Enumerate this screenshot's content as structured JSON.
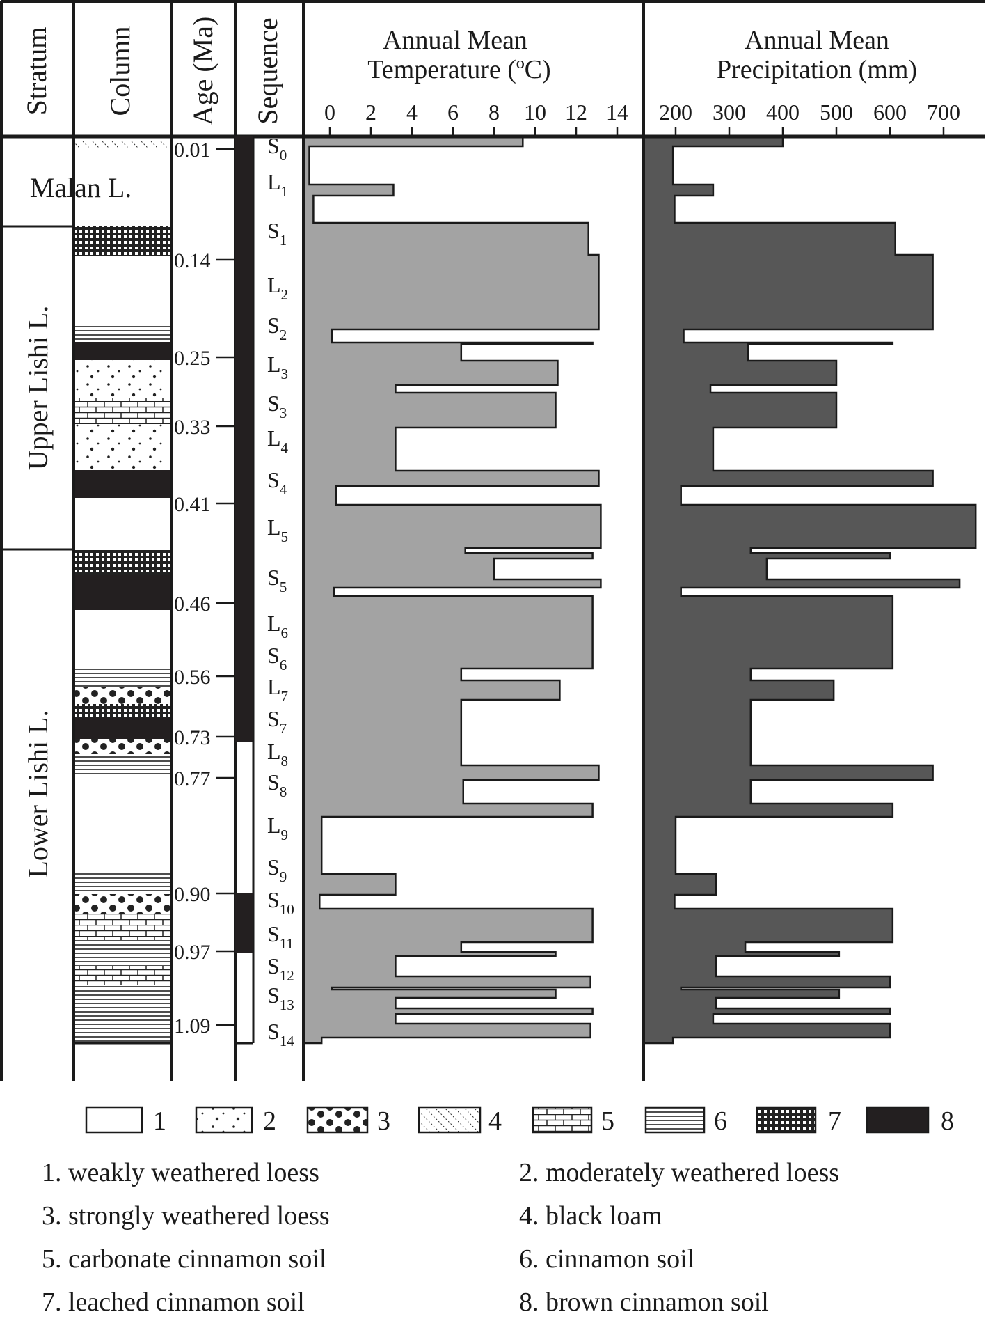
{
  "headers": {
    "stratum": "Stratum",
    "column": "Column",
    "age": "Age (Ma)",
    "sequence": "Sequence",
    "temperature": [
      "Annual Mean",
      "Temperature (ºC)"
    ],
    "precipitation": [
      "Annual Mean",
      "Precipitation (mm)"
    ]
  },
  "temp_ticks": [
    "0",
    "2",
    "4",
    "6",
    "8",
    "10",
    "12",
    "14"
  ],
  "prec_ticks": [
    "200",
    "300",
    "400",
    "500",
    "600",
    "700"
  ],
  "ages": [
    "0.01",
    "0.14",
    "0.25",
    "0.33",
    "0.41",
    "0.46",
    "0.56",
    "0.73",
    "0.77",
    "0.90",
    "0.97",
    "1.09"
  ],
  "strata": [
    "Malan L.",
    "Upper Lishi L.",
    "Lower Lishi L."
  ],
  "sequence": [
    {
      "l": "S",
      "s": "0"
    },
    {
      "l": "L",
      "s": "1"
    },
    {
      "l": "S",
      "s": "1"
    },
    {
      "l": "L",
      "s": "2"
    },
    {
      "l": "S",
      "s": "2"
    },
    {
      "l": "L",
      "s": "3"
    },
    {
      "l": "S",
      "s": "3"
    },
    {
      "l": "L",
      "s": "4"
    },
    {
      "l": "S",
      "s": "4"
    },
    {
      "l": "L",
      "s": "5"
    },
    {
      "l": "S",
      "s": "5"
    },
    {
      "l": "L",
      "s": "6"
    },
    {
      "l": "S",
      "s": "6"
    },
    {
      "l": "L",
      "s": "7"
    },
    {
      "l": "S",
      "s": "7"
    },
    {
      "l": "L",
      "s": "8"
    },
    {
      "l": "S",
      "s": "8"
    },
    {
      "l": "L",
      "s": "9"
    },
    {
      "l": "S",
      "s": "9"
    },
    {
      "l": "S",
      "s": "10"
    },
    {
      "l": "S",
      "s": "11"
    },
    {
      "l": "S",
      "s": "12"
    },
    {
      "l": "S",
      "s": "13"
    },
    {
      "l": "S",
      "s": "14"
    }
  ],
  "legend": {
    "numbers": [
      "1",
      "2",
      "3",
      "4",
      "5",
      "6",
      "7",
      "8"
    ],
    "descriptions": [
      "1. weakly weathered loess",
      "2. moderately weathered loess",
      "3. strongly weathered loess",
      "4. black loam",
      "5. carbonate cinnamon soil",
      "6. cinnamon soil",
      "7. leached cinnamon soil",
      "8. brown cinnamon soil"
    ]
  },
  "colors": {
    "temperature_fill": "#a3a3a3",
    "precipitation_fill": "#575757",
    "line": "#1a1a1a"
  },
  "chart_data": [
    {
      "type": "area",
      "title": "Annual Mean Temperature (ºC)",
      "xlabel": "Annual Mean Temperature (ºC)",
      "ylabel": "Sequence",
      "xlim": [
        -2,
        15.5
      ],
      "grid": false,
      "series": [
        {
          "name": "Annual Mean Temperature",
          "values": [
            9.4,
            -1.0,
            3.1,
            -0.8,
            12.6,
            13.1,
            0.1,
            12.8,
            6.4,
            11.1,
            3.2,
            11.0,
            3.2,
            13.1,
            0.3,
            13.2,
            6.6,
            12.8,
            8.0,
            13.2,
            0.2,
            12.8,
            6.4,
            11.2,
            6.4,
            13.1,
            6.5,
            12.8,
            -0.4,
            3.2,
            -0.5,
            12.8,
            6.4,
            11.0,
            3.2,
            12.7,
            0.1,
            11.0,
            3.2,
            12.8,
            3.2,
            12.7,
            -0.4
          ]
        }
      ]
    },
    {
      "type": "area",
      "title": "Annual Mean Precipitation (mm)",
      "xlabel": "Annual Mean Precipitation (mm)",
      "ylabel": "Sequence",
      "xlim": [
        150,
        780
      ],
      "grid": false,
      "series": [
        {
          "name": "Annual Mean Precipitation",
          "values": [
            400,
            195,
            270,
            198,
            610,
            680,
            215,
            605,
            335,
            500,
            265,
            500,
            270,
            680,
            210,
            760,
            340,
            600,
            370,
            730,
            210,
            605,
            340,
            495,
            340,
            680,
            340,
            605,
            200,
            275,
            198,
            605,
            330,
            505,
            275,
            600,
            210,
            505,
            275,
            600,
            270,
            600,
            195
          ]
        }
      ]
    }
  ]
}
